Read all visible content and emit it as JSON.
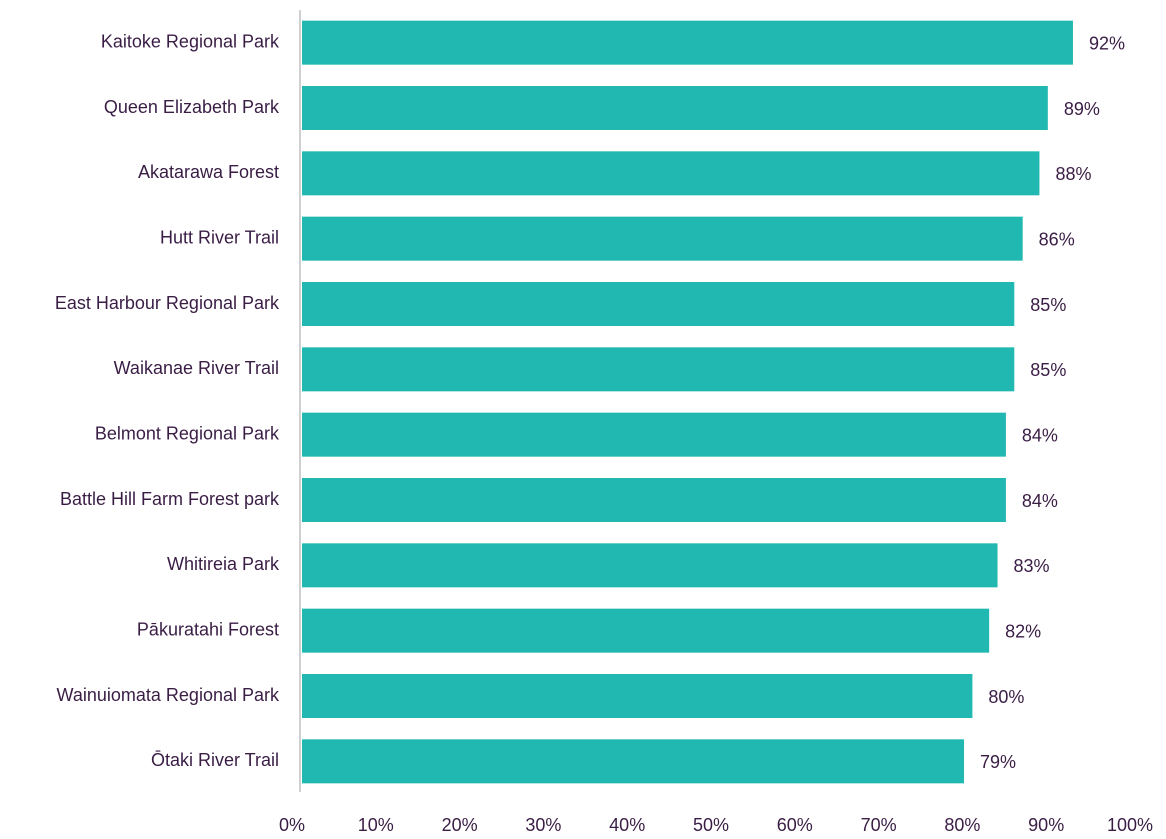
{
  "chart_data": {
    "type": "hbar",
    "categories": [
      "Kaitoke Regional Park",
      "Queen Elizabeth Park",
      "Akatarawa Forest",
      "Hutt River Trail",
      "East Harbour Regional Park",
      "Waikanae River Trail",
      "Belmont Regional Park",
      "Battle Hill Farm Forest park",
      "Whitireia Park",
      "Pākuratahi Forest",
      "Wainuiomata Regional Park",
      "Ōtaki River Trail"
    ],
    "values": [
      92,
      89,
      88,
      86,
      85,
      85,
      84,
      84,
      83,
      82,
      80,
      79
    ],
    "value_labels": [
      "92%",
      "89%",
      "88%",
      "86%",
      "85%",
      "85%",
      "84%",
      "84%",
      "83%",
      "82%",
      "80%",
      "79%"
    ],
    "color": "#20b8b0",
    "xlim": [
      0,
      100
    ],
    "xticks": [
      {
        "value": 0,
        "label": "0%"
      },
      {
        "value": 10,
        "label": "10%"
      },
      {
        "value": 20,
        "label": "20%"
      },
      {
        "value": 30,
        "label": "30%"
      },
      {
        "value": 40,
        "label": "40%"
      },
      {
        "value": 50,
        "label": "50%"
      },
      {
        "value": 60,
        "label": "60%"
      },
      {
        "value": 70,
        "label": "70%"
      },
      {
        "value": 80,
        "label": "80%"
      },
      {
        "value": 90,
        "label": "90%"
      },
      {
        "value": 100,
        "label": "100%"
      }
    ],
    "grid": false
  }
}
